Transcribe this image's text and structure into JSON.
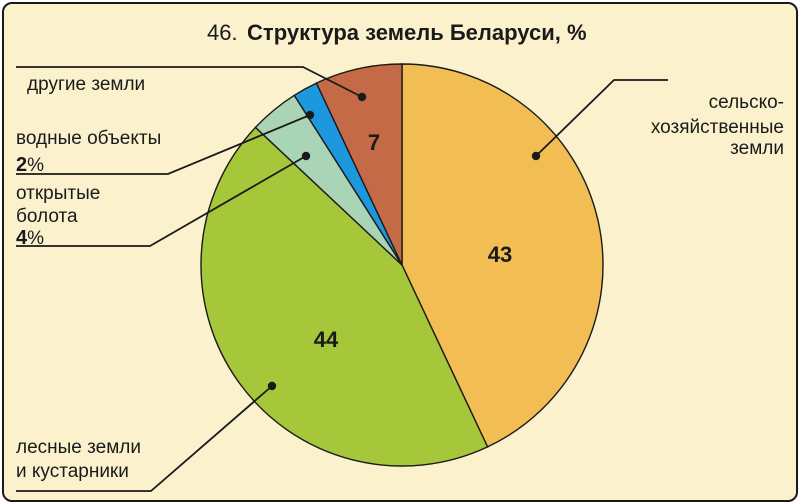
{
  "title": {
    "number": "46.",
    "text": "Структура земель Беларуси, %"
  },
  "colors": {
    "background": "#fbf2cd",
    "agricultural": "#f2bd52",
    "forest": "#a6c73a",
    "swamps": "#a9d4b5",
    "water": "#1d97dd",
    "other": "#c46a47"
  },
  "chart_data": {
    "type": "pie",
    "title": "Структура земель Беларуси, %",
    "start_angle_deg": 0,
    "direction": "clockwise",
    "slices": [
      {
        "key": "agricultural",
        "label_lines": [
          "сельско-",
          "хозяйственные",
          "земли"
        ],
        "value": 43,
        "value_label": "43",
        "color": "#f2bd52"
      },
      {
        "key": "forest",
        "label_lines": [
          "лесные земли",
          "и кустарники"
        ],
        "value": 44,
        "value_label": "44",
        "color": "#a6c73a"
      },
      {
        "key": "swamps",
        "label_lines": [
          "открытые",
          "болота"
        ],
        "value": 4,
        "value_label": "4",
        "value_suffix": "%",
        "color": "#a9d4b5"
      },
      {
        "key": "water",
        "label_lines": [
          "водные объекты"
        ],
        "value": 2,
        "value_label": "2",
        "value_suffix": "%",
        "color": "#1d97dd"
      },
      {
        "key": "other",
        "label_lines": [
          "другие земли"
        ],
        "value": 7,
        "value_label": "7",
        "color": "#c46a47"
      }
    ]
  }
}
